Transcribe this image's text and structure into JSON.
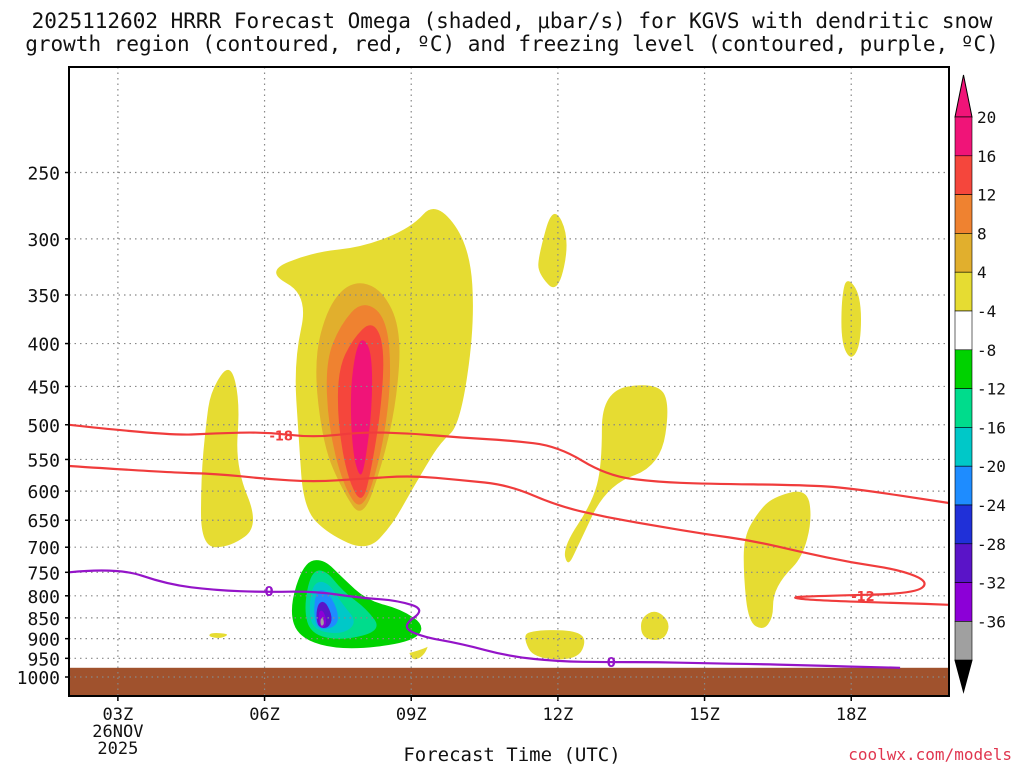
{
  "chart_data": {
    "type": "heatmap",
    "title_line1": "2025112602 HRRR Forecast Omega (shaded, μbar/s) for KGVS with dendritic snow",
    "title_line2": "growth region (contoured, red, ºC) and freezing level (contoured, purple, ºC)",
    "xlabel": "Forecast Time (UTC)",
    "credit": "coolwx.com/models",
    "date_label": [
      "26NOV",
      "2025"
    ],
    "x_range_hours": [
      2,
      20
    ],
    "x_ticks": [
      {
        "hour": 3,
        "label": "03Z"
      },
      {
        "hour": 6,
        "label": "06Z"
      },
      {
        "hour": 9,
        "label": "09Z"
      },
      {
        "hour": 12,
        "label": "12Z"
      },
      {
        "hour": 15,
        "label": "15Z"
      },
      {
        "hour": 18,
        "label": "18Z"
      }
    ],
    "y_axis": {
      "unit": "hPa",
      "range": [
        1030,
        200
      ],
      "ticks": [
        250,
        300,
        350,
        400,
        450,
        500,
        550,
        600,
        650,
        700,
        750,
        800,
        850,
        900,
        950,
        1000
      ]
    },
    "surface_level_hPa": 975,
    "colorbar": {
      "levels": [
        -36,
        -32,
        -28,
        -24,
        -20,
        -16,
        -12,
        -8,
        -4,
        4,
        8,
        12,
        16,
        20
      ],
      "colors": [
        "#a0a0a0",
        "#8c00d7",
        "#5a14c8",
        "#2030d8",
        "#1e8cff",
        "#00c8c8",
        "#00dc8c",
        "#00d200",
        "#ffffff",
        "#e6dc32",
        "#e1af2d",
        "#ef8230",
        "#f5463c",
        "#f01478"
      ],
      "under_color": "#000000",
      "over_color": "#f01478"
    },
    "shaded_regions": [
      {
        "value": 4,
        "points": [
          [
            6.0,
            328
          ],
          [
            7.0,
            311
          ],
          [
            8.0,
            307
          ],
          [
            9.0,
            291
          ],
          [
            9.5,
            270
          ],
          [
            10.2,
            305
          ],
          [
            10.3,
            380
          ],
          [
            10.0,
            500
          ],
          [
            9.6,
            525
          ],
          [
            9.3,
            560
          ],
          [
            9.0,
            600
          ],
          [
            8.6,
            660
          ],
          [
            8.1,
            708
          ],
          [
            7.3,
            675
          ],
          [
            6.8,
            630
          ],
          [
            6.7,
            520
          ],
          [
            6.6,
            420
          ],
          [
            6.9,
            350
          ]
        ]
      },
      {
        "value": 8,
        "points": [
          [
            7.3,
            360
          ],
          [
            7.8,
            336
          ],
          [
            8.4,
            344
          ],
          [
            8.8,
            385
          ],
          [
            8.7,
            470
          ],
          [
            8.4,
            560
          ],
          [
            8.0,
            650
          ],
          [
            7.6,
            600
          ],
          [
            7.2,
            530
          ],
          [
            7.0,
            420
          ]
        ]
      },
      {
        "value": 12,
        "points": [
          [
            7.55,
            380
          ],
          [
            8.0,
            355
          ],
          [
            8.5,
            372
          ],
          [
            8.6,
            440
          ],
          [
            8.4,
            540
          ],
          [
            8.0,
            640
          ],
          [
            7.6,
            590
          ],
          [
            7.3,
            500
          ],
          [
            7.25,
            420
          ]
        ]
      },
      {
        "value": 16,
        "points": [
          [
            7.8,
            395
          ],
          [
            8.2,
            375
          ],
          [
            8.45,
            400
          ],
          [
            8.4,
            470
          ],
          [
            8.2,
            560
          ],
          [
            8.0,
            625
          ],
          [
            7.7,
            580
          ],
          [
            7.5,
            500
          ],
          [
            7.5,
            430
          ]
        ]
      },
      {
        "value": 20,
        "points": [
          [
            7.85,
            410
          ],
          [
            8.0,
            392
          ],
          [
            8.2,
            410
          ],
          [
            8.2,
            480
          ],
          [
            8.05,
            560
          ],
          [
            7.95,
            580
          ],
          [
            7.8,
            540
          ],
          [
            7.75,
            460
          ]
        ]
      },
      {
        "value": 4,
        "points": [
          [
            4.9,
            455
          ],
          [
            5.3,
            420
          ],
          [
            5.5,
            470
          ],
          [
            5.4,
            560
          ],
          [
            5.9,
            660
          ],
          [
            5.3,
            700
          ],
          [
            4.7,
            700
          ],
          [
            4.7,
            580
          ],
          [
            4.8,
            500
          ]
        ]
      },
      {
        "value": 4,
        "points": [
          [
            11.6,
            315
          ],
          [
            11.9,
            272
          ],
          [
            12.25,
            300
          ],
          [
            12.0,
            350
          ],
          [
            11.6,
            330
          ]
        ]
      },
      {
        "value": 4,
        "points": [
          [
            12.9,
            455
          ],
          [
            14.0,
            445
          ],
          [
            14.3,
            470
          ],
          [
            14.1,
            560
          ],
          [
            13.0,
            590
          ],
          [
            12.4,
            700
          ],
          [
            12.2,
            740
          ],
          [
            12.1,
            700
          ],
          [
            12.7,
            620
          ],
          [
            12.9,
            560
          ]
        ]
      },
      {
        "value": 4,
        "points": [
          [
            16.1,
            635
          ],
          [
            16.4,
            610
          ],
          [
            17.1,
            595
          ],
          [
            17.2,
            650
          ],
          [
            17.0,
            720
          ],
          [
            16.6,
            760
          ],
          [
            16.4,
            800
          ],
          [
            16.4,
            850
          ],
          [
            16.2,
            880
          ],
          [
            15.9,
            860
          ],
          [
            15.8,
            760
          ],
          [
            15.8,
            680
          ]
        ]
      },
      {
        "value": 4,
        "points": [
          [
            17.8,
            355
          ],
          [
            17.9,
            332
          ],
          [
            18.2,
            350
          ],
          [
            18.2,
            400
          ],
          [
            18.0,
            420
          ],
          [
            17.8,
            400
          ]
        ]
      },
      {
        "value": 4,
        "points": [
          [
            11.4,
            880
          ],
          [
            12.3,
            878
          ],
          [
            12.6,
            900
          ],
          [
            12.4,
            955
          ],
          [
            11.5,
            950
          ],
          [
            11.3,
            900
          ]
        ]
      },
      {
        "value": 4,
        "points": [
          [
            13.7,
            850
          ],
          [
            14.0,
            830
          ],
          [
            14.3,
            860
          ],
          [
            14.2,
            900
          ],
          [
            13.9,
            905
          ],
          [
            13.7,
            890
          ]
        ]
      },
      {
        "value": 4,
        "points": [
          [
            9.0,
            870
          ],
          [
            9.4,
            890
          ],
          [
            9.3,
            940
          ],
          [
            9.0,
            960
          ],
          [
            8.9,
            900
          ]
        ]
      },
      {
        "value": 4,
        "points": [
          [
            4.9,
            885
          ],
          [
            5.3,
            888
          ],
          [
            5.1,
            900
          ],
          [
            4.85,
            895
          ]
        ]
      },
      {
        "value": -4,
        "points": [
          [
            9.7,
            598
          ],
          [
            10.2,
            618
          ],
          [
            10.7,
            700
          ],
          [
            11.0,
            705
          ],
          [
            11.0,
            720
          ],
          [
            9.6,
            720
          ],
          [
            9.4,
            670
          ],
          [
            9.5,
            620
          ]
        ]
      },
      {
        "value": -4,
        "points": [
          [
            6.0,
            760
          ],
          [
            6.5,
            720
          ],
          [
            7.0,
            688
          ],
          [
            7.4,
            720
          ],
          [
            7.7,
            760
          ],
          [
            8.1,
            790
          ],
          [
            8.8,
            810
          ],
          [
            9.5,
            830
          ],
          [
            9.8,
            870
          ],
          [
            9.5,
            920
          ],
          [
            8.2,
            960
          ],
          [
            7.1,
            955
          ],
          [
            6.3,
            930
          ],
          [
            6.1,
            870
          ],
          [
            6.0,
            820
          ]
        ]
      },
      {
        "value": -8,
        "points": [
          [
            6.8,
            730
          ],
          [
            7.2,
            722
          ],
          [
            7.6,
            762
          ],
          [
            8.1,
            810
          ],
          [
            8.8,
            830
          ],
          [
            9.3,
            870
          ],
          [
            9.0,
            910
          ],
          [
            7.6,
            930
          ],
          [
            6.7,
            900
          ],
          [
            6.5,
            830
          ]
        ]
      },
      {
        "value": -12,
        "points": [
          [
            6.95,
            748
          ],
          [
            7.25,
            745
          ],
          [
            7.6,
            790
          ],
          [
            8.1,
            830
          ],
          [
            8.4,
            880
          ],
          [
            7.6,
            905
          ],
          [
            6.95,
            890
          ],
          [
            6.8,
            830
          ]
        ]
      },
      {
        "value": -16,
        "points": [
          [
            7.0,
            770
          ],
          [
            7.3,
            770
          ],
          [
            7.6,
            820
          ],
          [
            7.9,
            860
          ],
          [
            7.6,
            890
          ],
          [
            7.0,
            880
          ],
          [
            6.9,
            830
          ]
        ]
      },
      {
        "value": -20,
        "points": [
          [
            7.05,
            790
          ],
          [
            7.25,
            785
          ],
          [
            7.5,
            830
          ],
          [
            7.5,
            870
          ],
          [
            7.1,
            880
          ],
          [
            7.0,
            840
          ]
        ]
      },
      {
        "value": -28,
        "points": [
          [
            7.1,
            815
          ],
          [
            7.25,
            812
          ],
          [
            7.4,
            850
          ],
          [
            7.3,
            875
          ],
          [
            7.1,
            873
          ],
          [
            7.05,
            845
          ]
        ]
      },
      {
        "value": -32,
        "points": [
          [
            7.1,
            835
          ],
          [
            7.2,
            832
          ],
          [
            7.28,
            860
          ],
          [
            7.2,
            875
          ],
          [
            7.12,
            870
          ]
        ]
      },
      {
        "value": -36,
        "points": [
          [
            7.14,
            852
          ],
          [
            7.2,
            850
          ],
          [
            7.22,
            866
          ],
          [
            7.15,
            870
          ]
        ]
      }
    ],
    "contours": [
      {
        "name": "dgz-minus18",
        "label": "-18",
        "label_at": [
          6.1,
          515
        ],
        "color": "#f03c3c",
        "points": [
          [
            2.0,
            500
          ],
          [
            4.0,
            515
          ],
          [
            5.0,
            512
          ],
          [
            6.0,
            510
          ],
          [
            7.0,
            518
          ],
          [
            8.0,
            510
          ],
          [
            9.0,
            512
          ],
          [
            10.0,
            518
          ],
          [
            11.0,
            522
          ],
          [
            12.0,
            530
          ],
          [
            13.0,
            575
          ],
          [
            14.0,
            585
          ],
          [
            15.0,
            588
          ],
          [
            17.0,
            590
          ],
          [
            18.0,
            595
          ],
          [
            20.0,
            620
          ]
        ]
      },
      {
        "name": "dgz-minus12",
        "label": "-12",
        "label_at": [
          18.0,
          800
        ],
        "color": "#f03c3c",
        "points": [
          [
            2.0,
            560
          ],
          [
            4.0,
            570
          ],
          [
            5.0,
            572
          ],
          [
            6.0,
            580
          ],
          [
            7.0,
            585
          ],
          [
            8.0,
            580
          ],
          [
            9.0,
            575
          ],
          [
            10.0,
            582
          ],
          [
            11.0,
            590
          ],
          [
            12.0,
            625
          ],
          [
            13.0,
            645
          ],
          [
            14.0,
            660
          ],
          [
            15.0,
            675
          ],
          [
            16.0,
            688
          ],
          [
            17.0,
            710
          ],
          [
            18.0,
            730
          ],
          [
            19.0,
            745
          ],
          [
            19.6,
            770
          ],
          [
            19.3,
            795
          ],
          [
            17.5,
            800
          ],
          [
            16.7,
            803
          ],
          [
            17.2,
            810
          ],
          [
            19.0,
            816
          ],
          [
            20.0,
            820
          ]
        ]
      },
      {
        "name": "freezing-level-0",
        "label": "0",
        "label_at": [
          6.0,
          790
        ],
        "label2": "0",
        "label2_at": [
          13.0,
          960
        ],
        "color": "#9414c8",
        "points": [
          [
            2.0,
            750
          ],
          [
            3.0,
            740
          ],
          [
            4.0,
            775
          ],
          [
            5.0,
            788
          ],
          [
            6.0,
            792
          ],
          [
            7.0,
            790
          ],
          [
            8.0,
            805
          ],
          [
            8.7,
            810
          ],
          [
            9.3,
            830
          ],
          [
            8.8,
            870
          ],
          [
            9.2,
            895
          ],
          [
            10.0,
            912
          ],
          [
            11.0,
            945
          ],
          [
            12.0,
            958
          ],
          [
            13.0,
            960
          ],
          [
            14.0,
            960
          ],
          [
            15.0,
            963
          ],
          [
            16.0,
            965
          ],
          [
            17.0,
            968
          ],
          [
            18.0,
            972
          ],
          [
            19.0,
            975
          ]
        ]
      }
    ]
  }
}
